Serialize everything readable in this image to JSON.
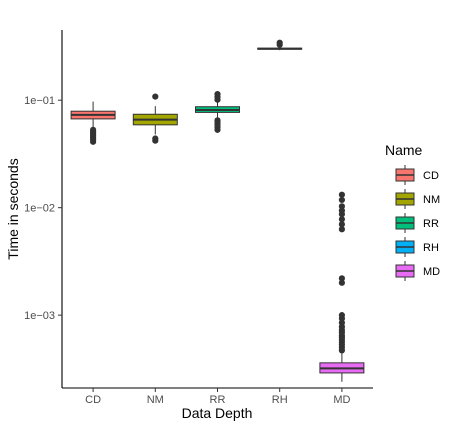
{
  "chart_data": {
    "type": "box",
    "xlabel": "Data Depth",
    "ylabel": "Time in seconds",
    "y_scale": "log10",
    "ylim": [
      0.00021,
      0.45
    ],
    "y_ticks": [
      {
        "value": 0.1,
        "label": "1e−01"
      },
      {
        "value": 0.01,
        "label": "1e−02"
      },
      {
        "value": 0.001,
        "label": "1e−03"
      }
    ],
    "grid": false,
    "legend": {
      "title": "Name",
      "position": "right"
    },
    "categories": [
      "CD",
      "NM",
      "RR",
      "RH",
      "MD"
    ],
    "series": [
      {
        "name": "CD",
        "color": "#F8766D",
        "lower_whisker": 0.056,
        "q1": 0.067,
        "median": 0.073,
        "q3": 0.079,
        "upper_whisker": 0.097,
        "outliers": [
          0.041,
          0.043,
          0.045,
          0.047,
          0.049,
          0.051,
          0.053
        ]
      },
      {
        "name": "NM",
        "color": "#A3A500",
        "lower_whisker": 0.048,
        "q1": 0.059,
        "median": 0.066,
        "q3": 0.074,
        "upper_whisker": 0.088,
        "outliers": [
          0.042,
          0.044,
          0.108
        ]
      },
      {
        "name": "RR",
        "color": "#00BF7D",
        "lower_whisker": 0.068,
        "q1": 0.077,
        "median": 0.081,
        "q3": 0.087,
        "upper_whisker": 0.097,
        "outliers": [
          0.053,
          0.056,
          0.059,
          0.062,
          0.065,
          0.101,
          0.107,
          0.114
        ]
      },
      {
        "name": "RH",
        "color": "#00B0F6",
        "lower_whisker": 0.292,
        "q1": 0.298,
        "median": 0.301,
        "q3": 0.305,
        "upper_whisker": 0.312,
        "outliers": [
          0.328,
          0.343
        ]
      },
      {
        "name": "MD",
        "color": "#E76BF3",
        "lower_whisker": 0.00024,
        "q1": 0.00029,
        "median": 0.00032,
        "q3": 0.00036,
        "upper_whisker": 0.00045,
        "outliers": [
          0.00047,
          0.0005,
          0.00053,
          0.00056,
          0.00059,
          0.00062,
          0.00065,
          0.00069,
          0.00073,
          0.00078,
          0.00085,
          0.00093,
          0.001,
          0.002,
          0.0022,
          0.0063,
          0.007,
          0.0078,
          0.0087,
          0.0094,
          0.0103,
          0.0118,
          0.0132
        ]
      }
    ]
  }
}
